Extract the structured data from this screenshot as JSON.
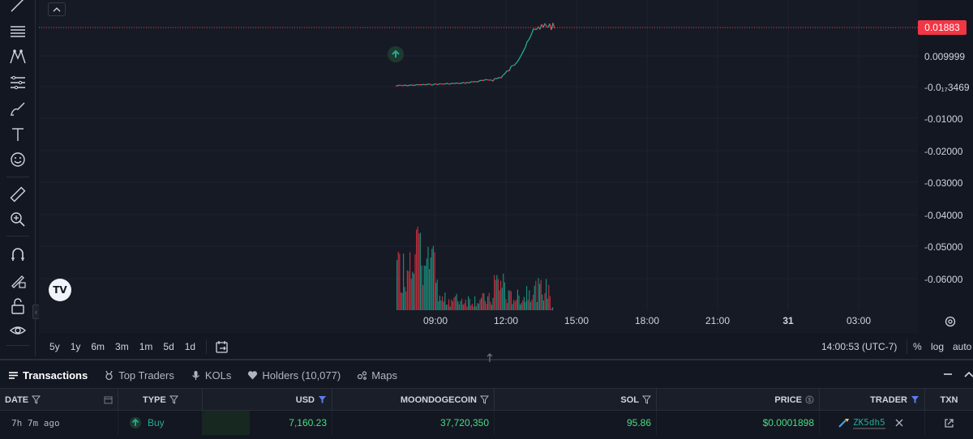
{
  "chart": {
    "current_price": "0.01883",
    "price_labels": [
      "0.009999",
      "-0.0₁₇3469",
      "-0.01000",
      "-0.02000",
      "-0.03000",
      "-0.04000",
      "-0.05000",
      "-0.06000"
    ],
    "time_labels": [
      {
        "text": "09:00",
        "bold": false
      },
      {
        "text": "12:00",
        "bold": false
      },
      {
        "text": "15:00",
        "bold": false
      },
      {
        "text": "18:00",
        "bold": false
      },
      {
        "text": "21:00",
        "bold": false
      },
      {
        "text": "31",
        "bold": true
      },
      {
        "text": "03:00",
        "bold": false
      }
    ],
    "logo_text": "TV"
  },
  "range_bar": {
    "ranges": [
      "5y",
      "1y",
      "6m",
      "3m",
      "1m",
      "5d",
      "1d"
    ],
    "clock": "14:00:53 (UTC-7)",
    "percent": "%",
    "log": "log",
    "auto": "auto"
  },
  "tabs": [
    {
      "label": "Transactions",
      "icon": "list-icon",
      "active": true
    },
    {
      "label": "Top Traders",
      "icon": "trophy-icon",
      "active": false
    },
    {
      "label": "KOLs",
      "icon": "microphone-icon",
      "active": false
    },
    {
      "label": "Holders (10,077)",
      "icon": "heart-icon",
      "active": false
    },
    {
      "label": "Maps",
      "icon": "bubble-map-icon",
      "active": false
    }
  ],
  "table": {
    "headers": {
      "date": "DATE",
      "type": "TYPE",
      "usd": "USD",
      "token": "MOONDOGECOIN",
      "sol": "SOL",
      "price": "PRICE",
      "trader": "TRADER",
      "txn": "TXN"
    },
    "rows": [
      {
        "date": "7h 7m ago",
        "type": "Buy",
        "usd": "7,160.23",
        "token": "37,720,350",
        "sol": "95.86",
        "price": "$0.0001898",
        "trader": "ZK5dh5"
      }
    ]
  },
  "colors": {
    "up": "#22ab94",
    "down": "#f23645",
    "background": "#161a25"
  }
}
